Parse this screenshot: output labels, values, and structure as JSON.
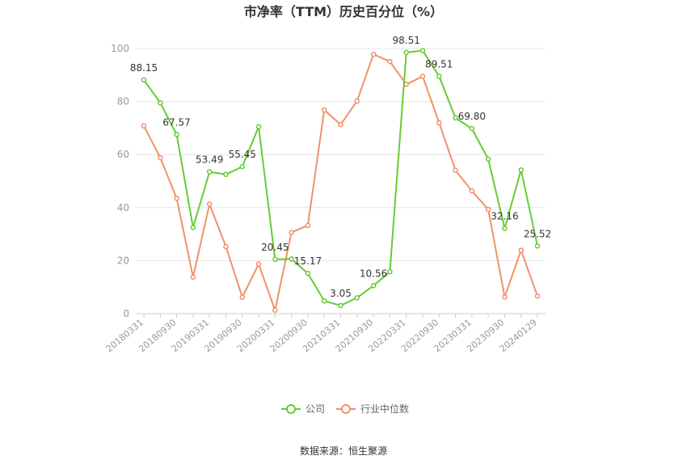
{
  "chart_data": {
    "type": "line",
    "title": "市净率（TTM）历史百分位（%）",
    "xlabel": "",
    "ylabel": "",
    "ylim": [
      0,
      100
    ],
    "yticks": [
      0,
      20,
      40,
      60,
      80,
      100
    ],
    "grid": true,
    "legend_position": "bottom",
    "x": [
      "20180331",
      "20180630",
      "20180930",
      "20181231",
      "20190331",
      "20190630",
      "20190930",
      "20191231",
      "20200331",
      "20200630",
      "20200930",
      "20201231",
      "20210331",
      "20210630",
      "20210930",
      "20211231",
      "20220331",
      "20220630",
      "20220930",
      "20221231",
      "20230331",
      "20230630",
      "20230930",
      "20231231",
      "20240129"
    ],
    "x_tick_labels": [
      "20180331",
      "20180930",
      "20190331",
      "20190930",
      "20200331",
      "20200930",
      "20210331",
      "20210930",
      "20220331",
      "20220930",
      "20230331",
      "20230930",
      "20240129"
    ],
    "series": [
      {
        "name": "公司",
        "color": "#66cc33",
        "values": [
          88.15,
          79.5,
          67.57,
          32.5,
          53.49,
          52.5,
          55.45,
          70.5,
          20.45,
          20.6,
          15.17,
          4.8,
          3.05,
          6.0,
          10.56,
          15.8,
          98.51,
          99.2,
          89.51,
          73.8,
          69.8,
          58.3,
          32.16,
          54.2,
          25.52
        ],
        "data_labels": [
          {
            "index": 0,
            "text": "88.15"
          },
          {
            "index": 2,
            "text": "67.57"
          },
          {
            "index": 4,
            "text": "53.49"
          },
          {
            "index": 6,
            "text": "55.45"
          },
          {
            "index": 8,
            "text": "20.45"
          },
          {
            "index": 10,
            "text": "15.17"
          },
          {
            "index": 12,
            "text": "3.05"
          },
          {
            "index": 14,
            "text": "10.56"
          },
          {
            "index": 16,
            "text": "98.51"
          },
          {
            "index": 18,
            "text": "89.51"
          },
          {
            "index": 20,
            "text": "69.80"
          },
          {
            "index": 22,
            "text": "32.16"
          },
          {
            "index": 24,
            "text": "25.52"
          }
        ]
      },
      {
        "name": "行业中位数",
        "color": "#f0916a",
        "values": [
          70.8,
          58.8,
          43.5,
          13.8,
          41.3,
          25.3,
          6.2,
          18.7,
          1.3,
          30.6,
          33.3,
          76.8,
          71.3,
          80.2,
          97.8,
          95.1,
          86.5,
          89.5,
          72.0,
          54.1,
          46.3,
          39.3,
          6.3,
          23.9,
          6.6
        ]
      }
    ]
  },
  "footer": {
    "source": "数据来源：恒生聚源"
  }
}
